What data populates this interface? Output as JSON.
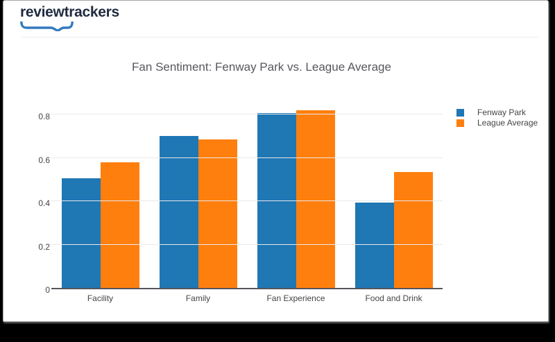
{
  "logo": {
    "text": "reviewtrackers",
    "text_color": "#202c40",
    "bracket_color": "#3279bf",
    "icon": "speech-bubble-bracket-icon"
  },
  "chart_data": {
    "type": "bar",
    "title": "Fan Sentiment: Fenway Park vs. League Average",
    "categories": [
      "Facility",
      "Family",
      "Fan Experience",
      "Food and Drink"
    ],
    "series": [
      {
        "name": "Fenway Park",
        "color": "#1f77b4",
        "values": [
          0.505,
          0.7,
          0.805,
          0.395
        ]
      },
      {
        "name": "League Average",
        "color": "#ff7f0e",
        "values": [
          0.58,
          0.685,
          0.82,
          0.535
        ]
      }
    ],
    "xlabel": "",
    "ylabel": "",
    "ylim": [
      0,
      0.88
    ],
    "yticks": [
      0,
      0.2,
      0.4,
      0.6,
      0.8
    ],
    "ytick_labels": [
      "0",
      "0.2",
      "0.4",
      "0.6",
      "0.8"
    ],
    "grid": true,
    "legend_position": "right",
    "axis_text_color": "#444444",
    "gridline_color": "#e9e9e9",
    "zeroline_color": "#55565c",
    "title_color": "#56565e"
  }
}
